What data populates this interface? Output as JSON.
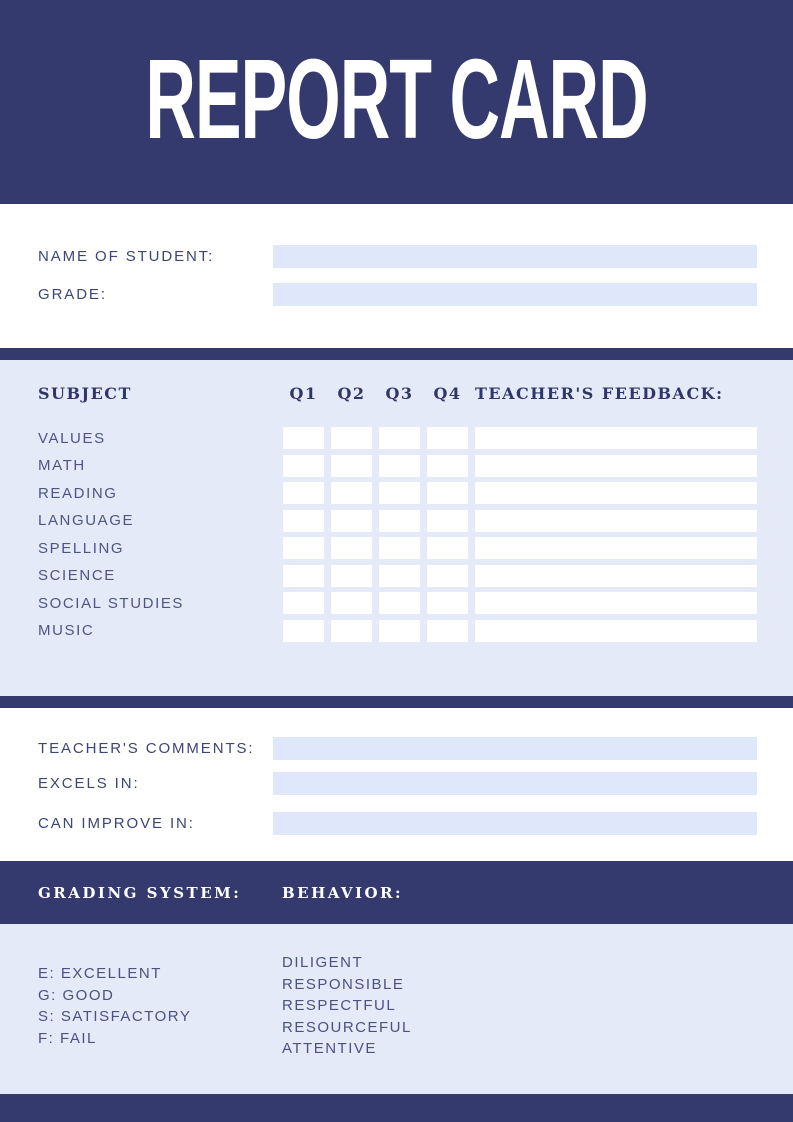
{
  "header": {
    "title": "REPORT CARD"
  },
  "colors": {
    "navy": "#343a6e",
    "section_blue": "#e4eaf8",
    "field_blue": "#dfe8fa",
    "label_text": "#3d4577",
    "subject_text": "#4e5683",
    "serif_header_text": "#2f3768",
    "white": "#ffffff"
  },
  "student_info": {
    "fields": [
      {
        "label": "NAME OF STUDENT:",
        "value": ""
      },
      {
        "label": "GRADE:",
        "value": ""
      }
    ]
  },
  "grades_table": {
    "subject_header": "SUBJECT",
    "quarters": [
      "Q1",
      "Q2",
      "Q3",
      "Q4"
    ],
    "feedback_header": "TEACHER'S FEEDBACK:",
    "subjects": [
      "VALUES",
      "MATH",
      "READING",
      "LANGUAGE",
      "SPELLING",
      "SCIENCE",
      "SOCIAL STUDIES",
      "MUSIC"
    ],
    "rows": [
      {
        "subject": "VALUES",
        "q1": "",
        "q2": "",
        "q3": "",
        "q4": "",
        "feedback": ""
      },
      {
        "subject": "MATH",
        "q1": "",
        "q2": "",
        "q3": "",
        "q4": "",
        "feedback": ""
      },
      {
        "subject": "READING",
        "q1": "",
        "q2": "",
        "q3": "",
        "q4": "",
        "feedback": ""
      },
      {
        "subject": "LANGUAGE",
        "q1": "",
        "q2": "",
        "q3": "",
        "q4": "",
        "feedback": ""
      },
      {
        "subject": "SPELLING",
        "q1": "",
        "q2": "",
        "q3": "",
        "q4": "",
        "feedback": ""
      },
      {
        "subject": "SCIENCE",
        "q1": "",
        "q2": "",
        "q3": "",
        "q4": "",
        "feedback": ""
      },
      {
        "subject": "SOCIAL STUDIES",
        "q1": "",
        "q2": "",
        "q3": "",
        "q4": "",
        "feedback": ""
      },
      {
        "subject": "MUSIC",
        "q1": "",
        "q2": "",
        "q3": "",
        "q4": "",
        "feedback": ""
      }
    ]
  },
  "comments": {
    "fields": [
      {
        "label": "TEACHER'S COMMENTS:",
        "value": ""
      },
      {
        "label": "EXCELS IN:",
        "value": ""
      },
      {
        "label": "CAN IMPROVE IN:",
        "value": ""
      }
    ]
  },
  "legend": {
    "grading_header": "GRADING SYSTEM:",
    "behavior_header": "BEHAVIOR:",
    "grading_items": [
      "E: EXCELLENT",
      "G: GOOD",
      "S: SATISFACTORY",
      "F: FAIL"
    ],
    "behavior_items": [
      "DILIGENT",
      "RESPONSIBLE",
      "RESPECTFUL",
      "RESOURCEFUL",
      "ATTENTIVE"
    ]
  }
}
